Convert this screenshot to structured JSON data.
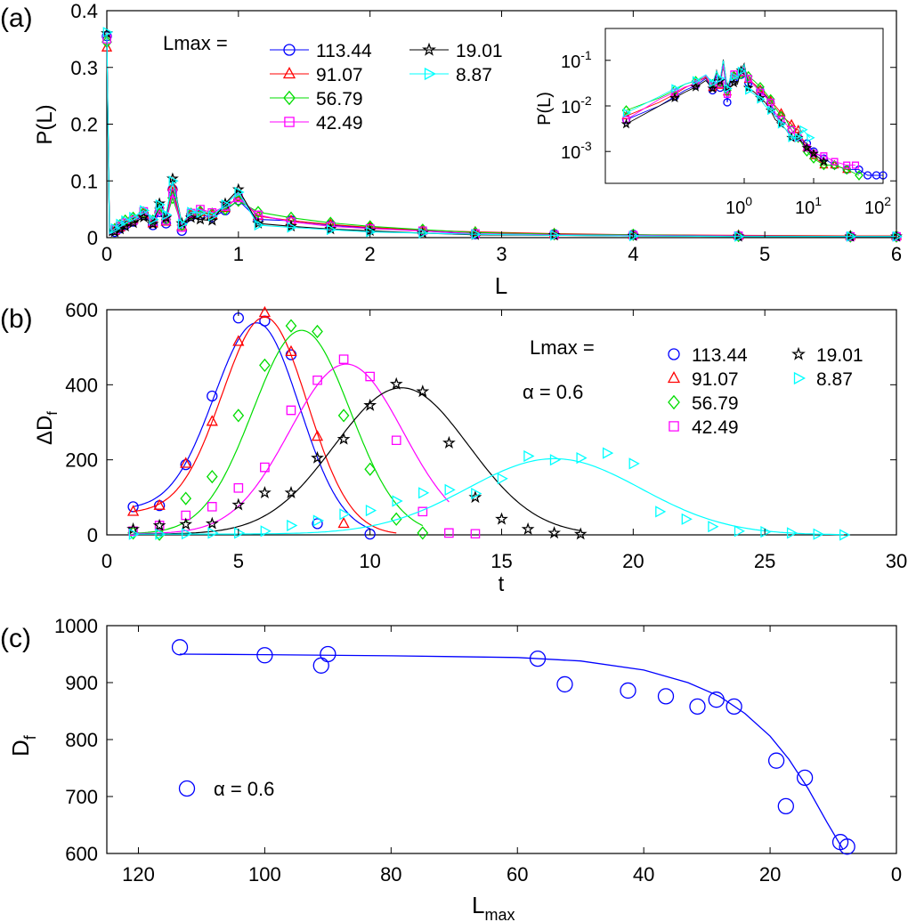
{
  "colors": {
    "113.44": "#0000ff",
    "91.07": "#ff0000",
    "56.79": "#00dd00",
    "42.49": "#ff00ff",
    "19.01": "#000000",
    "8.87": "#00ffff",
    "fit_c": "#0000ff"
  },
  "chart_data": [
    {
      "panel": "(a)",
      "type": "line",
      "xlabel": "L",
      "ylabel": "P(L)",
      "xlim": [
        0,
        6
      ],
      "ylim": [
        0,
        0.4
      ],
      "xticks": [
        "0",
        "1",
        "2",
        "3",
        "4",
        "5",
        "6"
      ],
      "yticks": [
        "0",
        "0.1",
        "0.2",
        "0.3",
        "0.4"
      ],
      "legend_title": "Lmax =",
      "legend_placement": "top-center",
      "series": [
        {
          "name": "113.44",
          "marker": "circle",
          "x": [
            0,
            0.02,
            0.06,
            0.1,
            0.14,
            0.2,
            0.28,
            0.35,
            0.4,
            0.45,
            0.5,
            0.57,
            0.64,
            0.71,
            0.8,
            0.9,
            1.0,
            1.15,
            1.4,
            1.7,
            2.0,
            2.4,
            2.8,
            3.4,
            4.0,
            4.8,
            5.65,
            6.0
          ],
          "y": [
            0.355,
            0.005,
            0.01,
            0.016,
            0.022,
            0.028,
            0.04,
            0.022,
            0.045,
            0.025,
            0.085,
            0.012,
            0.038,
            0.04,
            0.036,
            0.048,
            0.066,
            0.032,
            0.03,
            0.022,
            0.017,
            0.012,
            0.006,
            0.006,
            0.005,
            0.003,
            0.002,
            0.002
          ]
        },
        {
          "name": "91.07",
          "marker": "triangle-up",
          "x": [
            0,
            0.02,
            0.06,
            0.1,
            0.14,
            0.2,
            0.28,
            0.35,
            0.4,
            0.45,
            0.5,
            0.57,
            0.64,
            0.71,
            0.8,
            0.9,
            1.0,
            1.15,
            1.4,
            1.7,
            2.0,
            2.4,
            2.8,
            3.4,
            4.0,
            4.8,
            5.65,
            6.0
          ],
          "y": [
            0.335,
            0.006,
            0.012,
            0.018,
            0.025,
            0.032,
            0.042,
            0.025,
            0.05,
            0.028,
            0.09,
            0.02,
            0.04,
            0.045,
            0.04,
            0.052,
            0.072,
            0.038,
            0.03,
            0.023,
            0.018,
            0.013,
            0.01,
            0.007,
            0.005,
            0.004,
            0.003,
            0.003
          ]
        },
        {
          "name": "56.79",
          "marker": "diamond",
          "x": [
            0,
            0.02,
            0.06,
            0.1,
            0.14,
            0.2,
            0.28,
            0.35,
            0.4,
            0.45,
            0.5,
            0.57,
            0.64,
            0.71,
            0.8,
            0.9,
            1.0,
            1.15,
            1.4,
            1.7,
            2.0,
            2.4,
            2.8,
            3.4,
            4.0,
            4.8,
            5.65,
            6.0
          ],
          "y": [
            0.345,
            0.008,
            0.015,
            0.022,
            0.03,
            0.035,
            0.044,
            0.03,
            0.052,
            0.032,
            0.07,
            0.022,
            0.042,
            0.046,
            0.042,
            0.05,
            0.065,
            0.045,
            0.035,
            0.026,
            0.02,
            0.014,
            0.009,
            0.006,
            0.005,
            0.003,
            0.002,
            0.002
          ]
        },
        {
          "name": "42.49",
          "marker": "square",
          "x": [
            0,
            0.02,
            0.06,
            0.1,
            0.14,
            0.2,
            0.28,
            0.35,
            0.4,
            0.45,
            0.5,
            0.57,
            0.64,
            0.71,
            0.8,
            0.9,
            1.0,
            1.15,
            1.4,
            1.7,
            2.0,
            2.4,
            2.8,
            3.4,
            4.0,
            4.8,
            5.65,
            6.0
          ],
          "y": [
            0.35,
            0.005,
            0.014,
            0.02,
            0.026,
            0.03,
            0.046,
            0.028,
            0.048,
            0.03,
            0.078,
            0.018,
            0.043,
            0.05,
            0.044,
            0.055,
            0.07,
            0.04,
            0.028,
            0.02,
            0.016,
            0.012,
            0.007,
            0.005,
            0.004,
            0.003,
            0.002,
            0.002
          ]
        },
        {
          "name": "19.01",
          "marker": "star",
          "x": [
            0,
            0.02,
            0.06,
            0.1,
            0.14,
            0.2,
            0.28,
            0.35,
            0.4,
            0.45,
            0.5,
            0.57,
            0.64,
            0.71,
            0.8,
            0.9,
            1.0,
            1.15,
            1.4,
            1.7,
            2.0,
            2.4,
            2.8,
            3.4,
            4.0,
            4.8,
            5.65,
            6.0
          ],
          "y": [
            0.36,
            0.004,
            0.01,
            0.015,
            0.02,
            0.026,
            0.036,
            0.024,
            0.06,
            0.035,
            0.104,
            0.025,
            0.035,
            0.032,
            0.03,
            0.06,
            0.085,
            0.025,
            0.02,
            0.015,
            0.012,
            0.008,
            0.005,
            0.004,
            0.003,
            0.002,
            0.002,
            0.002
          ]
        },
        {
          "name": "8.87",
          "marker": "triangle-right",
          "x": [
            0,
            0.02,
            0.06,
            0.1,
            0.14,
            0.2,
            0.28,
            0.35,
            0.4,
            0.45,
            0.5,
            0.57,
            0.64,
            0.71,
            0.8,
            0.9,
            1.0,
            1.15,
            1.4,
            1.7,
            2.0,
            2.4,
            2.8,
            3.4,
            4.0,
            4.8,
            5.65,
            6.0
          ],
          "y": [
            0.362,
            0.007,
            0.016,
            0.024,
            0.03,
            0.036,
            0.048,
            0.032,
            0.058,
            0.04,
            0.1,
            0.024,
            0.045,
            0.044,
            0.038,
            0.058,
            0.08,
            0.022,
            0.018,
            0.014,
            0.01,
            0.008,
            0.006,
            0.004,
            0.003,
            0.002,
            0.002,
            0.002
          ]
        }
      ]
    },
    {
      "panel": "(a) inset",
      "type": "line",
      "xscale": "log",
      "yscale": "log",
      "xlabel": "",
      "ylabel": "P(L)",
      "xlim": [
        0.01,
        100
      ],
      "ylim": [
        0.0002,
        0.5
      ],
      "xticks": [
        "10^0",
        "10^1",
        "10^2"
      ],
      "yticks": [
        "10^-1",
        "10^-2",
        "10^-3"
      ],
      "series_ref": "same series as panel (a), shown on log-log axes with the tail L > 6 (values below)",
      "tail": [
        {
          "name": "113.44",
          "x": [
            8,
            10,
            14,
            20,
            30,
            45,
            60,
            80,
            100
          ],
          "y": [
            0.0015,
            0.001,
            0.0007,
            0.0005,
            0.0004,
            0.0004,
            0.0003,
            0.0003,
            0.0003
          ]
        },
        {
          "name": "91.07",
          "x": [
            8,
            10,
            14,
            20,
            30
          ],
          "y": [
            0.0012,
            0.0008,
            0.0005,
            0.0005,
            0.0004
          ]
        },
        {
          "name": "56.79",
          "x": [
            8,
            10,
            14,
            20,
            30,
            45
          ],
          "y": [
            0.001,
            0.0007,
            0.0005,
            0.0005,
            0.0004,
            0.0003
          ]
        },
        {
          "name": "42.49",
          "x": [
            8,
            10,
            14,
            20,
            30,
            40
          ],
          "y": [
            0.0012,
            0.0009,
            0.0008,
            0.0006,
            0.0005,
            0.0005
          ]
        },
        {
          "name": "19.01",
          "x": [
            8,
            10,
            14
          ],
          "y": [
            0.0012,
            0.0009,
            0.0006
          ]
        },
        {
          "name": "8.87",
          "x": [
            7,
            8.87
          ],
          "y": [
            0.003,
            0.002
          ]
        }
      ]
    },
    {
      "panel": "(b)",
      "type": "scatter",
      "xlabel": "t",
      "ylabel": "ΔD_f",
      "xlim": [
        0,
        30
      ],
      "ylim": [
        0,
        600
      ],
      "xticks": [
        "0",
        "5",
        "10",
        "15",
        "20",
        "25",
        "30"
      ],
      "yticks": [
        "0",
        "200",
        "400",
        "600"
      ],
      "legend_title": "Lmax =",
      "annotation": "α = 0.6",
      "series": [
        {
          "name": "113.44",
          "marker": "circle",
          "x": [
            1,
            2,
            3,
            4,
            5,
            6,
            7,
            8,
            10
          ],
          "y": [
            75,
            78,
            187,
            370,
            578,
            570,
            480,
            30,
            2
          ],
          "fit": {
            "peak_t": 5.7,
            "peak": 565,
            "width": 1.62,
            "base": 68,
            "t_start": 1,
            "t_end": 10
          }
        },
        {
          "name": "91.07",
          "marker": "triangle-up",
          "x": [
            1,
            2,
            3,
            4,
            5,
            6,
            7,
            8,
            9
          ],
          "y": [
            62,
            78,
            190,
            302,
            515,
            592,
            488,
            262,
            30
          ],
          "fit": {
            "peak_t": 6.0,
            "peak": 580,
            "width": 1.62,
            "base": 58,
            "t_start": 1,
            "t_end": 11
          }
        },
        {
          "name": "56.79",
          "marker": "diamond",
          "x": [
            1,
            2,
            3,
            4,
            5,
            6,
            7,
            8,
            9,
            10,
            11,
            12
          ],
          "y": [
            5,
            2,
            97,
            155,
            318,
            452,
            557,
            542,
            318,
            175,
            42,
            5
          ],
          "fit": {
            "peak_t": 7.4,
            "peak": 545,
            "width": 1.85,
            "base": 3,
            "t_start": 1,
            "t_end": 12
          }
        },
        {
          "name": "42.49",
          "marker": "square",
          "x": [
            1,
            2,
            3,
            4,
            5,
            6,
            7,
            8,
            9,
            10,
            11,
            12,
            13,
            14
          ],
          "y": [
            10,
            25,
            52,
            75,
            125,
            180,
            332,
            412,
            468,
            422,
            252,
            62,
            5,
            3
          ],
          "fit": {
            "peak_t": 9.1,
            "peak": 455,
            "width": 2.15,
            "base": 3,
            "t_start": 1,
            "t_end": 13
          }
        },
        {
          "name": "19.01",
          "marker": "star",
          "x": [
            1,
            2,
            3,
            4,
            5,
            6,
            7,
            8,
            9,
            10,
            11,
            12,
            13,
            14,
            15,
            16,
            17,
            18
          ],
          "y": [
            15,
            25,
            28,
            30,
            80,
            112,
            112,
            205,
            255,
            345,
            402,
            382,
            245,
            100,
            42,
            15,
            5,
            2
          ],
          "fit": {
            "peak_t": 11.2,
            "peak": 392,
            "width": 2.55,
            "base": 2,
            "t_start": 1,
            "t_end": 18
          }
        },
        {
          "name": "8.87",
          "marker": "triangle-right",
          "x": [
            1,
            2,
            3,
            4,
            5,
            6,
            7,
            8,
            9,
            10,
            11,
            12,
            13,
            14,
            15,
            16,
            17,
            18,
            19,
            20,
            21,
            22,
            23,
            24,
            25,
            26,
            27,
            28
          ],
          "y": [
            2,
            2,
            3,
            5,
            5,
            10,
            25,
            38,
            55,
            65,
            90,
            112,
            120,
            110,
            150,
            210,
            200,
            205,
            218,
            190,
            62,
            42,
            22,
            10,
            8,
            5,
            2,
            0
          ],
          "fit": {
            "peak_t": 17.0,
            "peak": 203,
            "width": 3.3,
            "base": 2,
            "t_start": 1,
            "t_end": 28
          }
        }
      ]
    },
    {
      "panel": "(c)",
      "type": "scatter",
      "xlabel": "L_max",
      "ylabel": "D_f",
      "xlim": [
        125,
        0
      ],
      "x_reversed": true,
      "ylim": [
        600,
        1000
      ],
      "xticks": [
        "120",
        "100",
        "80",
        "60",
        "40",
        "20",
        "0"
      ],
      "yticks": [
        "600",
        "700",
        "800",
        "900",
        "1000"
      ],
      "legend": "α = 0.6",
      "series": [
        {
          "name": "α = 0.6",
          "marker": "circle",
          "x": [
            113.44,
            100,
            91.07,
            90,
            56.79,
            52.5,
            42.49,
            36.5,
            31.5,
            28.5,
            25.7,
            19.01,
            17.5,
            14.5,
            8.87,
            7.8
          ],
          "y": [
            962,
            948,
            930,
            950,
            942,
            897,
            886,
            876,
            858,
            870,
            858,
            763,
            683,
            733,
            620,
            612
          ]
        }
      ],
      "fit": {
        "x": [
          113.44,
          100,
          80,
          60,
          50,
          40,
          33,
          28,
          24,
          20,
          17,
          14,
          11,
          8.5
        ],
        "y": [
          950,
          949,
          947,
          944,
          938,
          922,
          900,
          876,
          846,
          806,
          765,
          714,
          655,
          608
        ]
      }
    }
  ]
}
